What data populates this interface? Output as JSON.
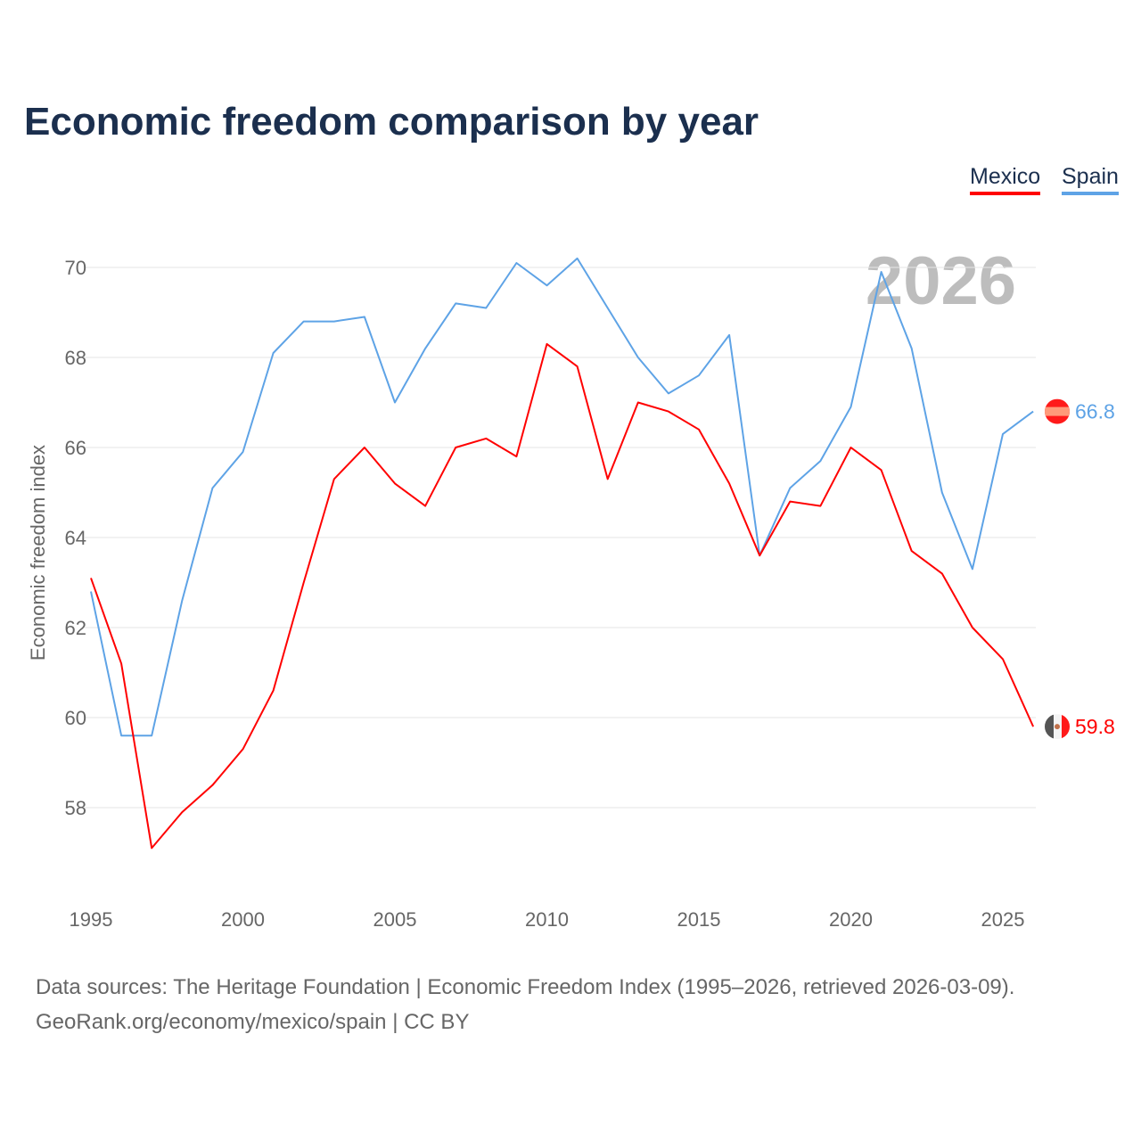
{
  "chart_data": {
    "type": "line",
    "title": "Economic freedom comparison by year",
    "xlabel": "",
    "ylabel": "Economic freedom index",
    "xlim": [
      1995,
      2026
    ],
    "ylim": [
      56.2,
      71.5
    ],
    "grid": true,
    "legend_placement": "top-right",
    "x_ticks": [
      "1995",
      "2000",
      "2005",
      "2010",
      "2015",
      "2020",
      "2025"
    ],
    "y_ticks": [
      "58",
      "60",
      "62",
      "64",
      "66",
      "68",
      "70"
    ],
    "year_annotation": "2026",
    "x": [
      1995,
      1996,
      1997,
      1998,
      1999,
      2000,
      2001,
      2002,
      2003,
      2004,
      2005,
      2006,
      2007,
      2008,
      2009,
      2010,
      2011,
      2012,
      2013,
      2014,
      2015,
      2016,
      2017,
      2018,
      2019,
      2020,
      2021,
      2022,
      2023,
      2024,
      2025,
      2026
    ],
    "series": [
      {
        "name": "Mexico",
        "color": "#ff0000",
        "end_label": "59.8",
        "values": [
          63.1,
          61.2,
          57.1,
          57.9,
          58.5,
          59.3,
          60.6,
          63.0,
          65.3,
          66.0,
          65.2,
          64.7,
          66.0,
          66.2,
          65.8,
          68.3,
          67.8,
          65.3,
          67.0,
          66.8,
          66.4,
          65.2,
          63.6,
          64.8,
          64.7,
          66.0,
          65.5,
          63.7,
          63.2,
          62.0,
          61.3,
          59.8
        ]
      },
      {
        "name": "Spain",
        "color": "#5ea3e6",
        "end_label": "66.8",
        "values": [
          62.8,
          59.6,
          59.6,
          62.6,
          65.1,
          65.9,
          68.1,
          68.8,
          68.8,
          68.9,
          67.0,
          68.2,
          69.2,
          69.1,
          70.1,
          69.6,
          70.2,
          69.1,
          68.0,
          67.2,
          67.6,
          68.5,
          63.6,
          65.1,
          65.7,
          66.9,
          69.9,
          68.2,
          65.0,
          63.3,
          66.3,
          66.8
        ]
      }
    ]
  },
  "footer": {
    "line1": "Data sources: The Heritage Foundation | Economic Freedom Index (1995–2026, retrieved 2026-03-09).",
    "line2": "GeoRank.org/economy/mexico/spain | CC BY"
  }
}
